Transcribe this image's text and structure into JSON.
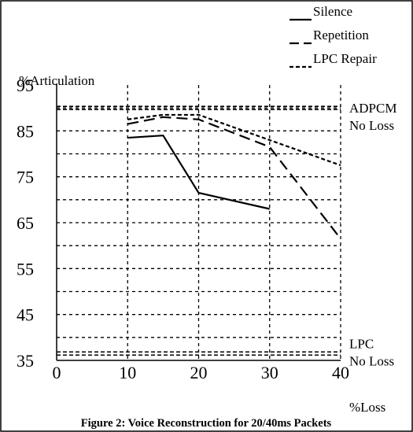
{
  "chart_data": {
    "type": "line",
    "title": "",
    "caption": "Figure 2: Voice Reconstruction for 20/40ms Packets",
    "ylabel": "%Articulation",
    "xlabel": "%Loss",
    "xlim": [
      0,
      40
    ],
    "ylim": [
      35,
      95
    ],
    "x_ticks": [
      0,
      10,
      20,
      30,
      40
    ],
    "y_ticks": [
      35,
      45,
      55,
      65,
      75,
      85,
      95
    ],
    "x_gridlines": [
      10,
      20,
      30
    ],
    "y_gridlines": [
      40,
      45,
      50,
      55,
      60,
      65,
      70,
      75,
      80,
      85,
      90
    ],
    "grid": true,
    "legend_position": "top-right",
    "series": [
      {
        "name": "Silence",
        "style": "solid",
        "x": [
          10,
          15,
          20,
          30
        ],
        "y": [
          83.5,
          84,
          71.5,
          68
        ]
      },
      {
        "name": "Repetition",
        "style": "long-dash",
        "x": [
          10,
          15,
          20,
          30,
          40
        ],
        "y": [
          86.5,
          88,
          87.5,
          81.5,
          61.5
        ]
      },
      {
        "name": "LPC Repair",
        "style": "short-dash",
        "x": [
          10,
          15,
          20,
          30,
          40
        ],
        "y": [
          87.5,
          88.5,
          88.5,
          83,
          77.5
        ]
      }
    ],
    "reference_lines": [
      {
        "label_line1": "ADPCM",
        "label_line2": "No Loss",
        "y": 90
      },
      {
        "label_line1": "LPC",
        "label_line2": "No Loss",
        "y": 36.5
      }
    ]
  }
}
